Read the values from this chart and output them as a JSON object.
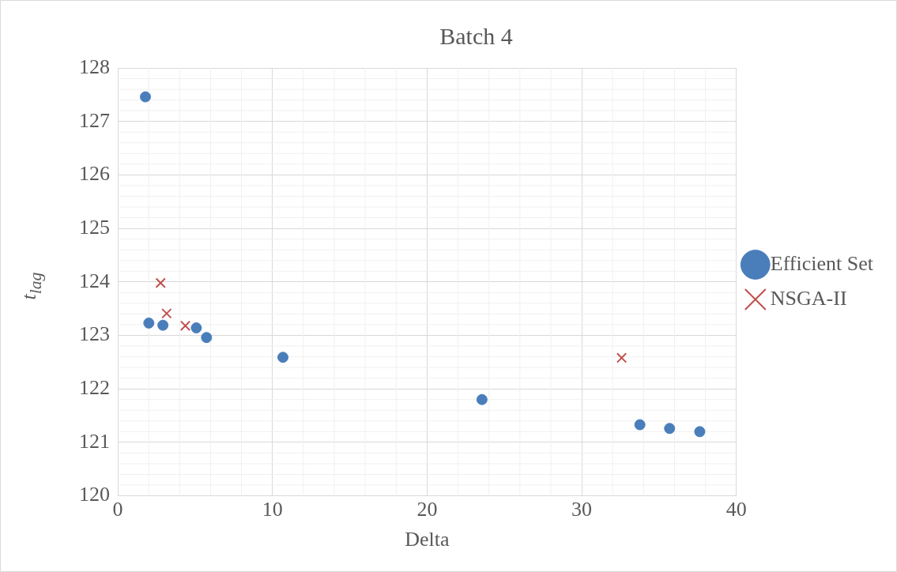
{
  "chart_data": {
    "type": "scatter",
    "title": "Batch 4",
    "xlabel": "Delta",
    "ylabel": "t$_{lag}$",
    "xlim": [
      0,
      40
    ],
    "xticks": [
      0,
      10,
      20,
      30,
      40
    ],
    "ylim": [
      120,
      128
    ],
    "yticks": [
      120,
      121,
      122,
      123,
      124,
      125,
      126,
      127,
      128
    ],
    "grid": true,
    "legend": "right",
    "series": [
      {
        "name": "Efficient Set",
        "color": "#4a7ebb",
        "marker": "circle",
        "x": [
          1.79,
          2.01,
          2.92,
          5.08,
          5.74,
          10.68,
          23.55,
          33.76,
          35.68,
          37.63
        ],
        "values": [
          127.46,
          123.23,
          123.19,
          123.14,
          122.96,
          122.59,
          121.8,
          121.33,
          121.26,
          121.2
        ]
      },
      {
        "name": "NSGA-II",
        "color": "#c0504d",
        "marker": "cross",
        "x": [
          2.77,
          3.16,
          4.37,
          32.58
        ],
        "values": [
          123.98,
          123.41,
          123.18,
          122.58
        ]
      }
    ]
  }
}
